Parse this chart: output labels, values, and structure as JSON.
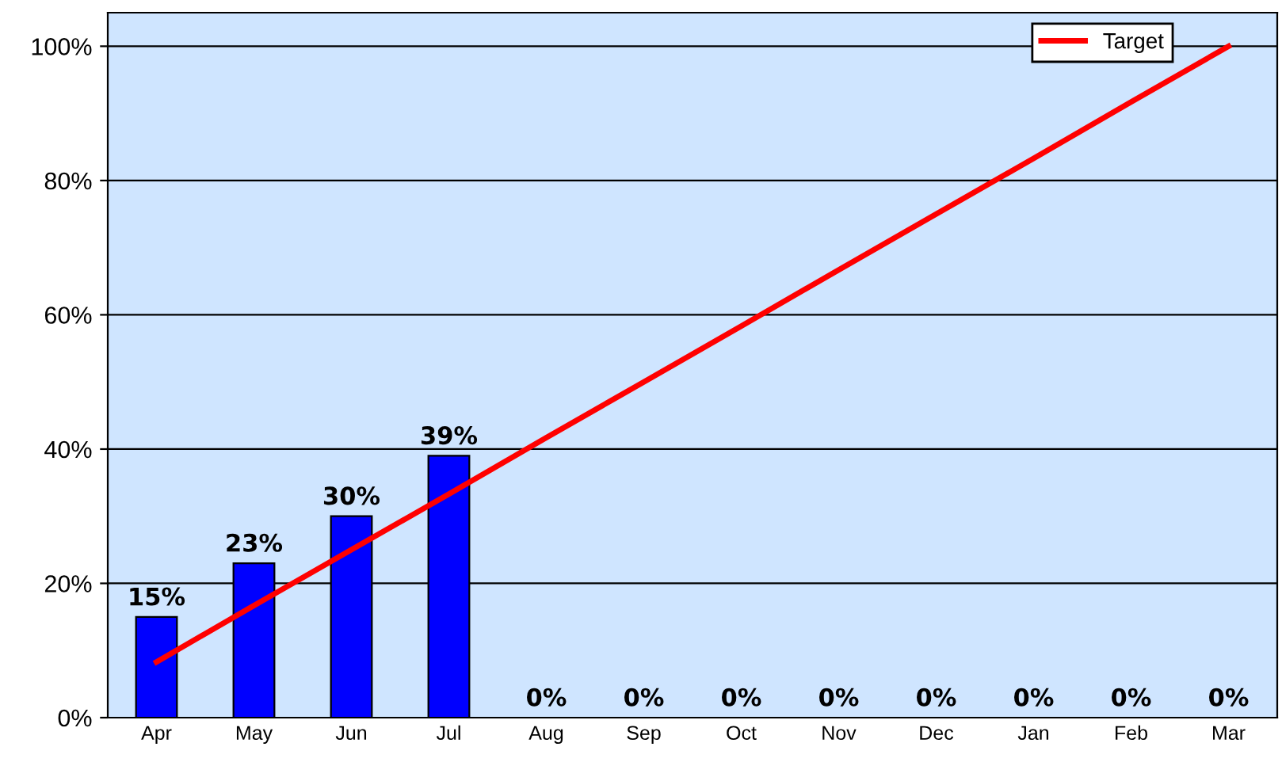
{
  "chart_data": {
    "type": "bar",
    "categories": [
      "Apr",
      "May",
      "Jun",
      "Jul",
      "Aug",
      "Sep",
      "Oct",
      "Nov",
      "Dec",
      "Jan",
      "Feb",
      "Mar"
    ],
    "series": [
      {
        "color": "#0000ff",
        "values": [
          15,
          23,
          30,
          39,
          0,
          0,
          0,
          0,
          0,
          0,
          0,
          0
        ],
        "value_labels": [
          "15%",
          "23%",
          "30%",
          "39%",
          "0%",
          "0%",
          "0%",
          "0%",
          "0%",
          "0%",
          "0%",
          "0%"
        ]
      },
      {
        "name": "Target",
        "type": "line",
        "color": "#ff0000",
        "values": [
          8.3,
          16.7,
          25,
          33.3,
          41.7,
          50,
          58.3,
          66.7,
          75,
          83.3,
          91.7,
          100
        ]
      }
    ],
    "ylim": [
      0,
      105
    ],
    "yticks": [
      {
        "value": 0,
        "label": "0%"
      },
      {
        "value": 20,
        "label": "20%"
      },
      {
        "value": 40,
        "label": "40%"
      },
      {
        "value": 60,
        "label": "60%"
      },
      {
        "value": 80,
        "label": "80%"
      },
      {
        "value": 100,
        "label": "100%"
      }
    ],
    "grid": "y",
    "legend": "top right",
    "marker": "none",
    "line_style": "solid"
  }
}
